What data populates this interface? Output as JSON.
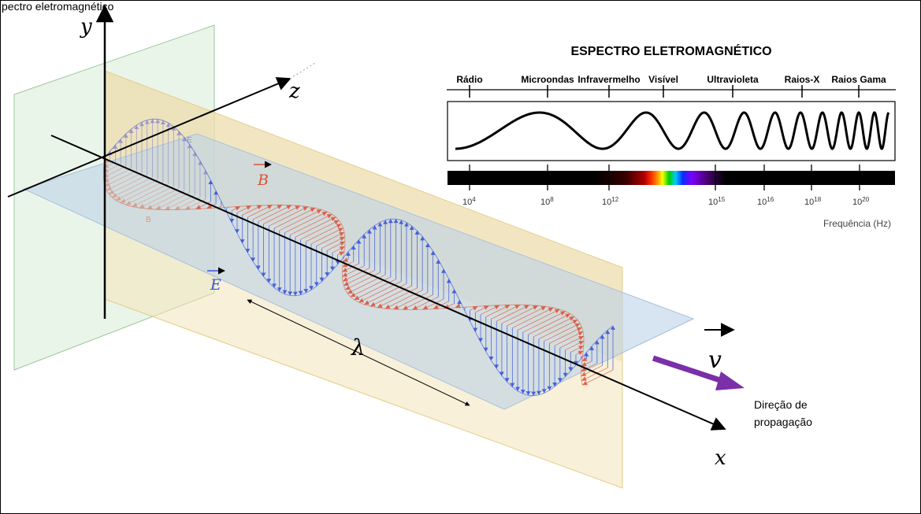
{
  "header_text": "pectro eletromagnético",
  "axes": {
    "y": "y",
    "z": "z",
    "x": "x"
  },
  "fields": {
    "E_label": "E",
    "B_label": "B",
    "E_small": "E",
    "B_small": "B",
    "E_color": "#3a55d8",
    "B_color": "#d8543a"
  },
  "wavelength_symbol": "λ",
  "velocity_symbol": "v",
  "propagation": {
    "line1": "Direção de",
    "line2": "propagação",
    "arrow_color": "#7b2fa8"
  },
  "spectrum": {
    "title": "ESPECTRO ELETROMAGNÉTICO",
    "bands": [
      "Rádio",
      "Microondas",
      "Infravermelho",
      "Visível",
      "Ultravioleta",
      "Raios-X",
      "Raios Gama"
    ],
    "frequency_ticks": [
      {
        "base": "10",
        "exp": "4"
      },
      {
        "base": "10",
        "exp": "8"
      },
      {
        "base": "10",
        "exp": "12"
      },
      {
        "base": "10",
        "exp": "15"
      },
      {
        "base": "10",
        "exp": "16"
      },
      {
        "base": "10",
        "exp": "18"
      },
      {
        "base": "10",
        "exp": "20"
      }
    ],
    "frequency_label": "Frequência (Hz)"
  }
}
